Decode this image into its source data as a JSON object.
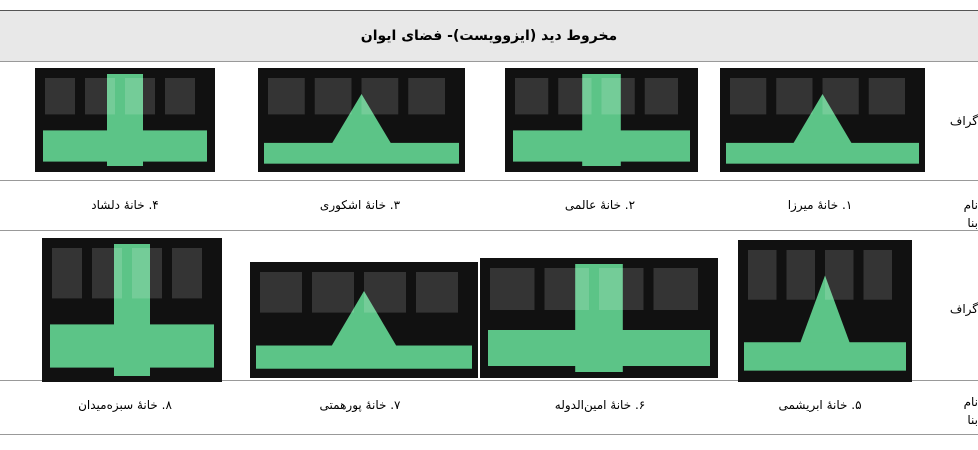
{
  "header": {
    "title": "مخروط دید (ایزوویست)- فضای ایوان"
  },
  "table": {
    "row_labels": [
      "گراف",
      "نام بنا",
      "گراف",
      "نام بنا"
    ],
    "names": [
      [
        "۱. خانۀ میرزا",
        "۲. خانۀ عالمی",
        "۳. خانۀ اشکوری",
        "۴. خانۀ دلشاد"
      ],
      [
        "۵. خانۀ ابریشمی",
        "۶. خانۀ امین‌الدوله",
        "۷. خانۀ پورهمتی",
        "۸. خانۀ سبزه‌میدان"
      ]
    ]
  }
}
